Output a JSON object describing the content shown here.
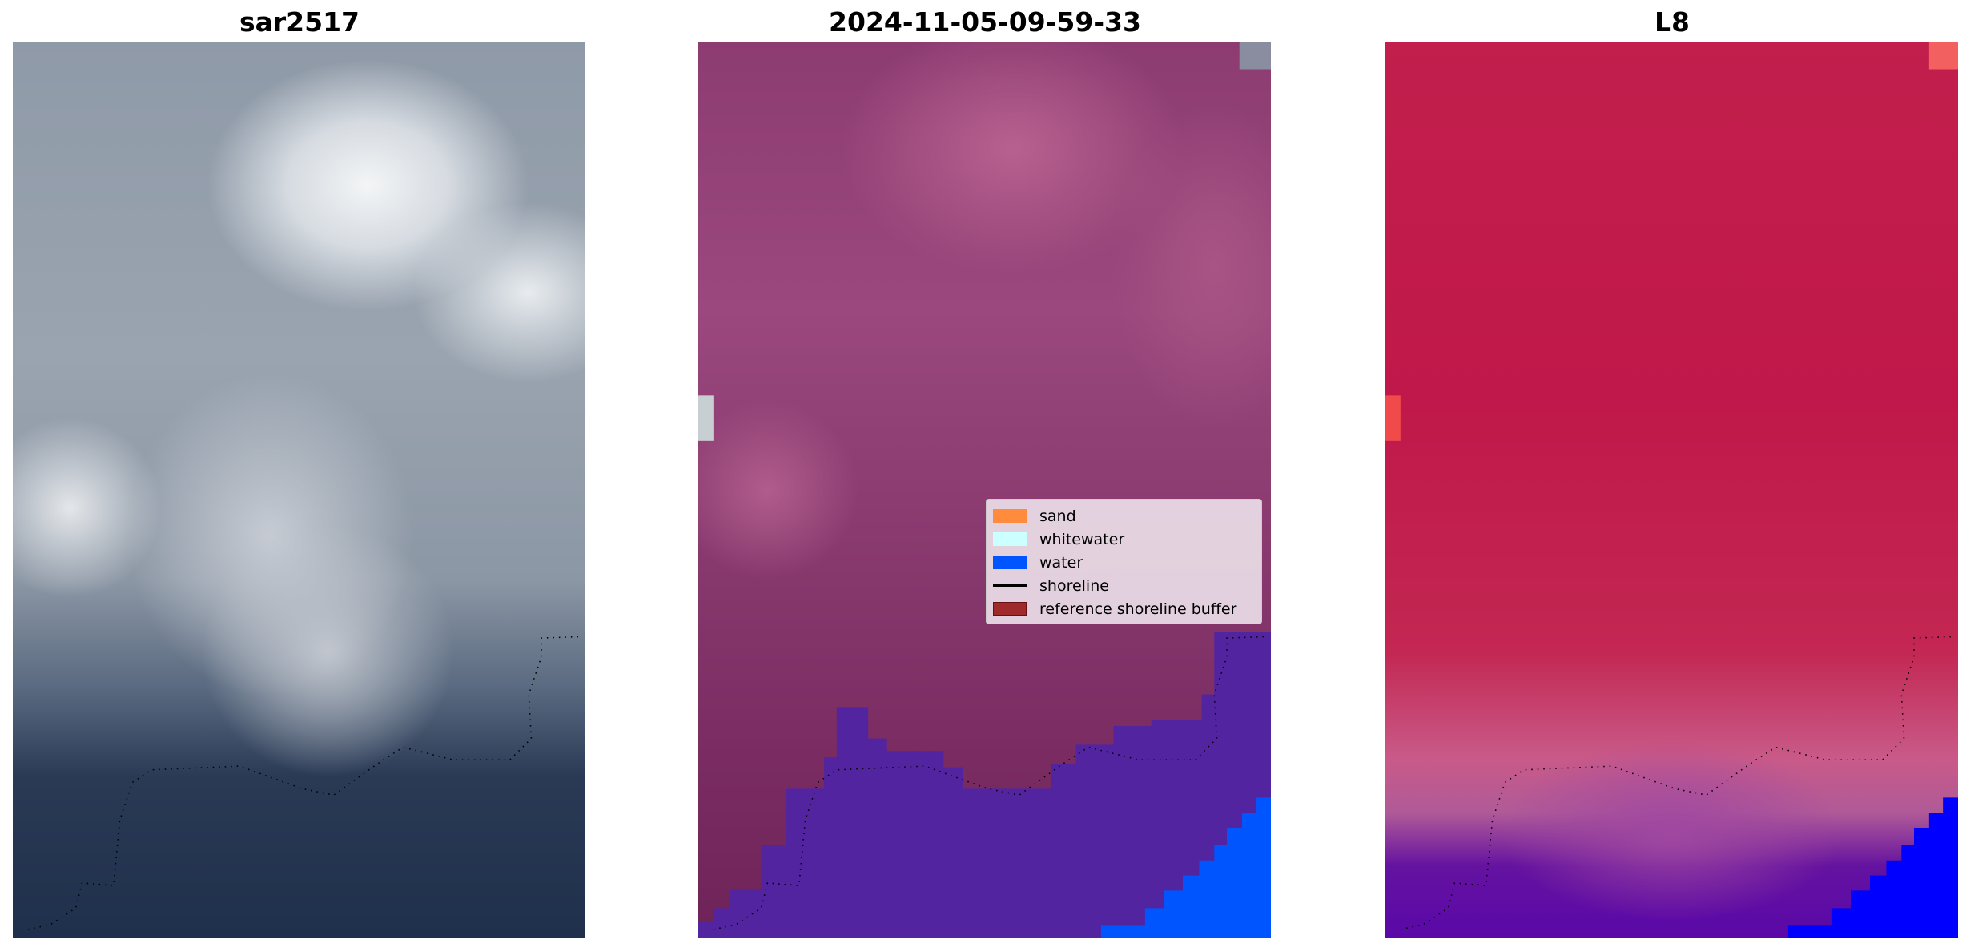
{
  "panels": [
    {
      "title": "sar2517"
    },
    {
      "title": "2024-11-05-09-59-33"
    },
    {
      "title": "L8"
    }
  ],
  "legend": {
    "items": [
      {
        "label": "sand",
        "color": "#ff8c3c",
        "type": "patch"
      },
      {
        "label": "whitewater",
        "color": "#ccffff",
        "type": "patch"
      },
      {
        "label": "water",
        "color": "#0055ff",
        "type": "patch"
      },
      {
        "label": "shoreline",
        "color": "#000000",
        "type": "line"
      },
      {
        "label": "reference shoreline buffer",
        "color": "#9e2a2b",
        "type": "patch"
      }
    ]
  },
  "colors": {
    "water_class": "#5224a0",
    "water_edge": "#0055ff",
    "l8_water": "#0000ff"
  }
}
